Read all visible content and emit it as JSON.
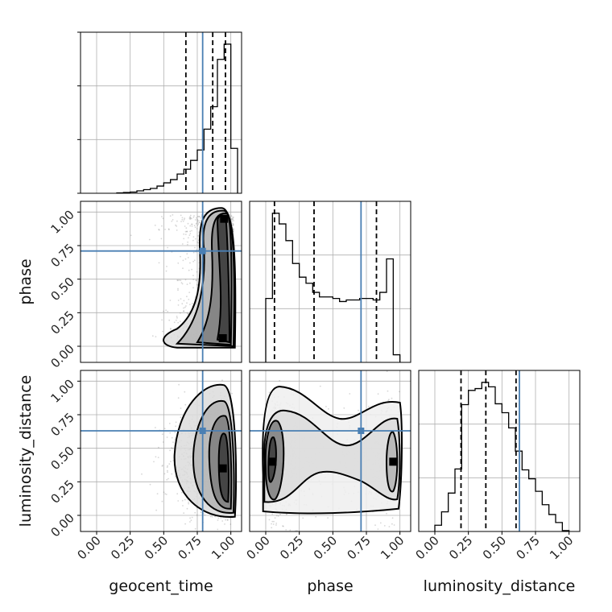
{
  "chart_data": {
    "type": "corner",
    "parameters": [
      "geocent_time",
      "phase",
      "luminosity_distance"
    ],
    "tick_values": [
      0.0,
      0.25,
      0.5,
      0.75,
      1.0
    ],
    "tick_labels": [
      "0.00",
      "0.25",
      "0.50",
      "0.75",
      "1.00"
    ],
    "axis_range": [
      -0.12,
      1.08
    ],
    "grid": true,
    "truth_color": "#4a7fb3",
    "truths": {
      "geocent_time": 0.79,
      "phase": 0.71,
      "luminosity_distance": 0.63
    },
    "quantiles": {
      "geocent_time": [
        0.665,
        0.865,
        0.96
      ],
      "phase": [
        0.065,
        0.36,
        0.825
      ],
      "luminosity_distance": [
        0.195,
        0.38,
        0.605
      ]
    },
    "histograms": {
      "geocent_time": {
        "bin_edges": [
          0.15,
          0.2,
          0.25,
          0.3,
          0.35,
          0.4,
          0.45,
          0.5,
          0.55,
          0.6,
          0.65,
          0.7,
          0.75,
          0.8,
          0.85,
          0.9,
          0.95,
          1.0,
          1.05
        ],
        "counts": [
          0.5,
          1,
          1.5,
          3,
          4.5,
          6,
          9,
          13,
          17,
          24,
          30,
          41,
          54,
          80,
          108,
          167,
          186,
          56
        ]
      },
      "phase": {
        "bin_edges": [
          0.0,
          0.05,
          0.1,
          0.15,
          0.2,
          0.25,
          0.3,
          0.35,
          0.4,
          0.45,
          0.5,
          0.55,
          0.6,
          0.65,
          0.7,
          0.75,
          0.8,
          0.85,
          0.9,
          0.95,
          1.0
        ],
        "counts": [
          42,
          98,
          91,
          80,
          65,
          56,
          52,
          46,
          43,
          43,
          42,
          40,
          41,
          41,
          42,
          42,
          41,
          46,
          68,
          5
        ]
      },
      "luminosity_distance": {
        "bin_edges": [
          0.0,
          0.05,
          0.1,
          0.15,
          0.2,
          0.25,
          0.3,
          0.35,
          0.4,
          0.45,
          0.5,
          0.55,
          0.6,
          0.65,
          0.7,
          0.75,
          0.8,
          0.85,
          0.9,
          0.95,
          1.0
        ],
        "counts": [
          7,
          22,
          43,
          70,
          142,
          158,
          160,
          167,
          162,
          143,
          133,
          116,
          90,
          69,
          59,
          45,
          30,
          19,
          10,
          1
        ]
      }
    },
    "density_peaks": {
      "phase_vs_geocent_time": [
        [
          0.94,
          0.06
        ],
        [
          0.95,
          0.95
        ]
      ],
      "luminosity_distance_vs_geocent_time": [
        [
          0.94,
          0.35
        ]
      ],
      "luminosity_distance_vs_phase": [
        [
          0.05,
          0.4
        ],
        [
          0.95,
          0.4
        ]
      ]
    }
  }
}
